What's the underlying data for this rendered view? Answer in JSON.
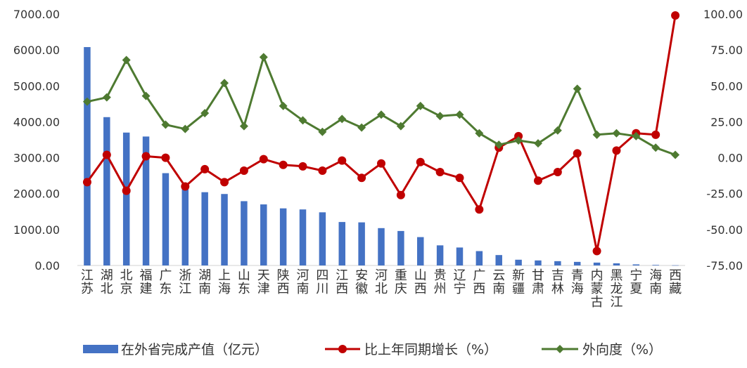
{
  "chart_data": {
    "type": "bar+line",
    "categories": [
      "江苏",
      "湖北",
      "北京",
      "福建",
      "广东",
      "浙江",
      "湖南",
      "上海",
      "山东",
      "天津",
      "陕西",
      "河南",
      "四川",
      "江西",
      "安徽",
      "河北",
      "重庆",
      "山西",
      "贵州",
      "辽宁",
      "广西",
      "云南",
      "新疆",
      "甘肃",
      "吉林",
      "青海",
      "内蒙古",
      "黑龙江",
      "宁夏",
      "海南",
      "西藏"
    ],
    "y_left": {
      "ticks": [
        "0.00",
        "1000.00",
        "2000.00",
        "3000.00",
        "4000.00",
        "5000.00",
        "6000.00",
        "7000.00"
      ],
      "ylim": [
        0,
        7000
      ]
    },
    "y_right": {
      "ticks": [
        "-75.00",
        "-50.00",
        "-25.00",
        "0.00",
        "25.00",
        "50.00",
        "75.00",
        "100.00"
      ],
      "ylim": [
        -75,
        100
      ]
    },
    "series": [
      {
        "name": "在外省完成产值（亿元）",
        "type": "bar",
        "axis": "left",
        "color": "#4472C4",
        "values": [
          6080,
          4130,
          3700,
          3590,
          2570,
          2150,
          2040,
          1990,
          1790,
          1700,
          1590,
          1560,
          1480,
          1210,
          1200,
          1040,
          960,
          790,
          560,
          500,
          400,
          290,
          160,
          140,
          120,
          100,
          80,
          60,
          30,
          15,
          5
        ]
      },
      {
        "name": "比上年同期增长（%）",
        "type": "line",
        "axis": "right",
        "color": "#C00000",
        "marker": "circle",
        "values": [
          -17,
          2,
          -23,
          1,
          0,
          -20,
          -8,
          -17,
          -9,
          -1,
          -5,
          -6,
          -9,
          -2,
          -14,
          -4,
          -26,
          -3,
          -10,
          -14,
          -36,
          7,
          15,
          -16,
          -10,
          3,
          -65,
          5,
          17,
          16,
          99
        ]
      },
      {
        "name": "外向度（%）",
        "type": "line",
        "axis": "right",
        "color": "#4E7A31",
        "marker": "diamond",
        "values": [
          39,
          42,
          68,
          43,
          23,
          20,
          31,
          52,
          22,
          70,
          36,
          26,
          18,
          27,
          21,
          30,
          22,
          36,
          29,
          30,
          17,
          9,
          12,
          10,
          19,
          48,
          16,
          17,
          15,
          7,
          2
        ]
      }
    ],
    "legend_position": "bottom",
    "grid": false
  }
}
